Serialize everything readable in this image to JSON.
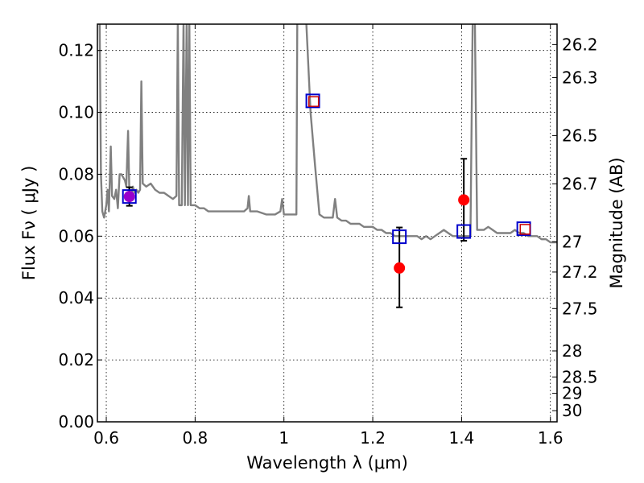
{
  "chart_data": {
    "type": "scatter",
    "xlabel": "Wavelength  λ (μm)",
    "ylabel": "Flux  Fν  ( μJy )",
    "y2label": "Magnitude (AB)",
    "xlim": [
      0.58,
      1.615
    ],
    "ylim": [
      0.0,
      0.1285
    ],
    "grid": true,
    "x_ticks": [
      0.6,
      0.8,
      1,
      1.2,
      1.4,
      1.6
    ],
    "x_tick_labels": [
      "0.6",
      "0.8",
      "1",
      "1.2",
      "1.4",
      "1.6"
    ],
    "y_ticks": [
      0.0,
      0.02,
      0.04,
      0.06,
      0.08,
      0.1,
      0.12
    ],
    "y_tick_labels": [
      "0.00",
      "0.02",
      "0.04",
      "0.06",
      "0.08",
      "0.10",
      "0.12"
    ],
    "y2_ticks": [
      {
        "flux": 0.1219,
        "label": "26.2"
      },
      {
        "flux": 0.1112,
        "label": "26.3"
      },
      {
        "flux": 0.0925,
        "label": "26.5"
      },
      {
        "flux": 0.0769,
        "label": "26.7"
      },
      {
        "flux": 0.0582,
        "label": "27"
      },
      {
        "flux": 0.0484,
        "label": "27.2"
      },
      {
        "flux": 0.0366,
        "label": "27.5"
      },
      {
        "flux": 0.0229,
        "label": "28"
      },
      {
        "flux": 0.0145,
        "label": "28.5"
      },
      {
        "flux": 0.0092,
        "label": "29"
      },
      {
        "flux": 0.0036,
        "label": "30"
      }
    ],
    "series": [
      {
        "kind": "line",
        "color": "#808080",
        "points": [
          [
            0.585,
            0.1285
          ],
          [
            0.588,
            0.08
          ],
          [
            0.591,
            0.068
          ],
          [
            0.595,
            0.066
          ],
          [
            0.6,
            0.07
          ],
          [
            0.603,
            0.075
          ],
          [
            0.606,
            0.068
          ],
          [
            0.61,
            0.089
          ],
          [
            0.613,
            0.073
          ],
          [
            0.618,
            0.072
          ],
          [
            0.622,
            0.075
          ],
          [
            0.626,
            0.069
          ],
          [
            0.63,
            0.08
          ],
          [
            0.634,
            0.08
          ],
          [
            0.638,
            0.079
          ],
          [
            0.642,
            0.078
          ],
          [
            0.645,
            0.076
          ],
          [
            0.649,
            0.094
          ],
          [
            0.652,
            0.074
          ],
          [
            0.656,
            0.073
          ],
          [
            0.66,
            0.076
          ],
          [
            0.664,
            0.074
          ],
          [
            0.668,
            0.075
          ],
          [
            0.672,
            0.074
          ],
          [
            0.676,
            0.075
          ],
          [
            0.679,
            0.11
          ],
          [
            0.682,
            0.077
          ],
          [
            0.69,
            0.076
          ],
          [
            0.7,
            0.077
          ],
          [
            0.71,
            0.075
          ],
          [
            0.72,
            0.074
          ],
          [
            0.73,
            0.074
          ],
          [
            0.74,
            0.073
          ],
          [
            0.75,
            0.072
          ],
          [
            0.758,
            0.073
          ],
          [
            0.761,
            0.13
          ],
          [
            0.764,
            0.07
          ],
          [
            0.77,
            0.07
          ],
          [
            0.774,
            0.13
          ],
          [
            0.777,
            0.07
          ],
          [
            0.781,
            0.13
          ],
          [
            0.784,
            0.07
          ],
          [
            0.787,
            0.13
          ],
          [
            0.79,
            0.07
          ],
          [
            0.8,
            0.07
          ],
          [
            0.81,
            0.069
          ],
          [
            0.82,
            0.069
          ],
          [
            0.83,
            0.068
          ],
          [
            0.84,
            0.068
          ],
          [
            0.85,
            0.068
          ],
          [
            0.86,
            0.068
          ],
          [
            0.87,
            0.068
          ],
          [
            0.88,
            0.068
          ],
          [
            0.89,
            0.068
          ],
          [
            0.9,
            0.068
          ],
          [
            0.91,
            0.068
          ],
          [
            0.918,
            0.069
          ],
          [
            0.921,
            0.073
          ],
          [
            0.924,
            0.068
          ],
          [
            0.94,
            0.068
          ],
          [
            0.96,
            0.067
          ],
          [
            0.98,
            0.067
          ],
          [
            0.992,
            0.068
          ],
          [
            0.996,
            0.072
          ],
          [
            1.0,
            0.067
          ],
          [
            1.01,
            0.067
          ],
          [
            1.02,
            0.067
          ],
          [
            1.028,
            0.067
          ],
          [
            1.03,
            0.13
          ],
          [
            1.04,
            0.13
          ],
          [
            1.05,
            0.13
          ],
          [
            1.06,
            0.1
          ],
          [
            1.07,
            0.083
          ],
          [
            1.08,
            0.067
          ],
          [
            1.09,
            0.066
          ],
          [
            1.1,
            0.066
          ],
          [
            1.11,
            0.066
          ],
          [
            1.115,
            0.072
          ],
          [
            1.12,
            0.066
          ],
          [
            1.13,
            0.065
          ],
          [
            1.14,
            0.065
          ],
          [
            1.15,
            0.064
          ],
          [
            1.16,
            0.064
          ],
          [
            1.17,
            0.064
          ],
          [
            1.18,
            0.063
          ],
          [
            1.19,
            0.063
          ],
          [
            1.2,
            0.063
          ],
          [
            1.21,
            0.062
          ],
          [
            1.22,
            0.062
          ],
          [
            1.23,
            0.061
          ],
          [
            1.24,
            0.061
          ],
          [
            1.25,
            0.06
          ],
          [
            1.26,
            0.06
          ],
          [
            1.27,
            0.06
          ],
          [
            1.28,
            0.06
          ],
          [
            1.29,
            0.06
          ],
          [
            1.3,
            0.06
          ],
          [
            1.31,
            0.059
          ],
          [
            1.32,
            0.06
          ],
          [
            1.33,
            0.059
          ],
          [
            1.34,
            0.06
          ],
          [
            1.35,
            0.061
          ],
          [
            1.36,
            0.062
          ],
          [
            1.37,
            0.061
          ],
          [
            1.38,
            0.06
          ],
          [
            1.39,
            0.06
          ],
          [
            1.4,
            0.06
          ],
          [
            1.41,
            0.06
          ],
          [
            1.42,
            0.06
          ],
          [
            1.425,
            0.13
          ],
          [
            1.43,
            0.13
          ],
          [
            1.435,
            0.062
          ],
          [
            1.45,
            0.062
          ],
          [
            1.46,
            0.063
          ],
          [
            1.47,
            0.062
          ],
          [
            1.48,
            0.061
          ],
          [
            1.49,
            0.061
          ],
          [
            1.5,
            0.061
          ],
          [
            1.51,
            0.061
          ],
          [
            1.52,
            0.062
          ],
          [
            1.53,
            0.061
          ],
          [
            1.54,
            0.061
          ],
          [
            1.55,
            0.06
          ],
          [
            1.56,
            0.06
          ],
          [
            1.57,
            0.06
          ],
          [
            1.58,
            0.059
          ],
          [
            1.59,
            0.059
          ],
          [
            1.6,
            0.058
          ],
          [
            1.615,
            0.058
          ]
        ]
      },
      {
        "kind": "marker",
        "marker": "square",
        "color": "#0000cc",
        "points": [
          [
            0.652,
            0.0728
          ],
          [
            1.065,
            0.1037
          ],
          [
            1.26,
            0.0598
          ],
          [
            1.405,
            0.0615
          ],
          [
            1.54,
            0.0624
          ]
        ]
      },
      {
        "kind": "marker",
        "marker": "square-small",
        "color": "#cc0000",
        "points": [
          [
            1.067,
            0.1035
          ],
          [
            1.543,
            0.0622
          ]
        ]
      },
      {
        "kind": "marker",
        "marker": "circle",
        "color": "#ff0000",
        "points": [
          [
            1.26,
            0.0497
          ],
          [
            1.405,
            0.0717
          ]
        ],
        "errors": [
          [
            0.037,
            0.0628
          ],
          [
            0.0585,
            0.085
          ]
        ]
      },
      {
        "kind": "marker",
        "marker": "circle",
        "color": "#9900cc",
        "points": [
          [
            0.652,
            0.0728
          ]
        ],
        "errors": [
          [
            0.0698,
            0.0758
          ]
        ]
      }
    ]
  }
}
